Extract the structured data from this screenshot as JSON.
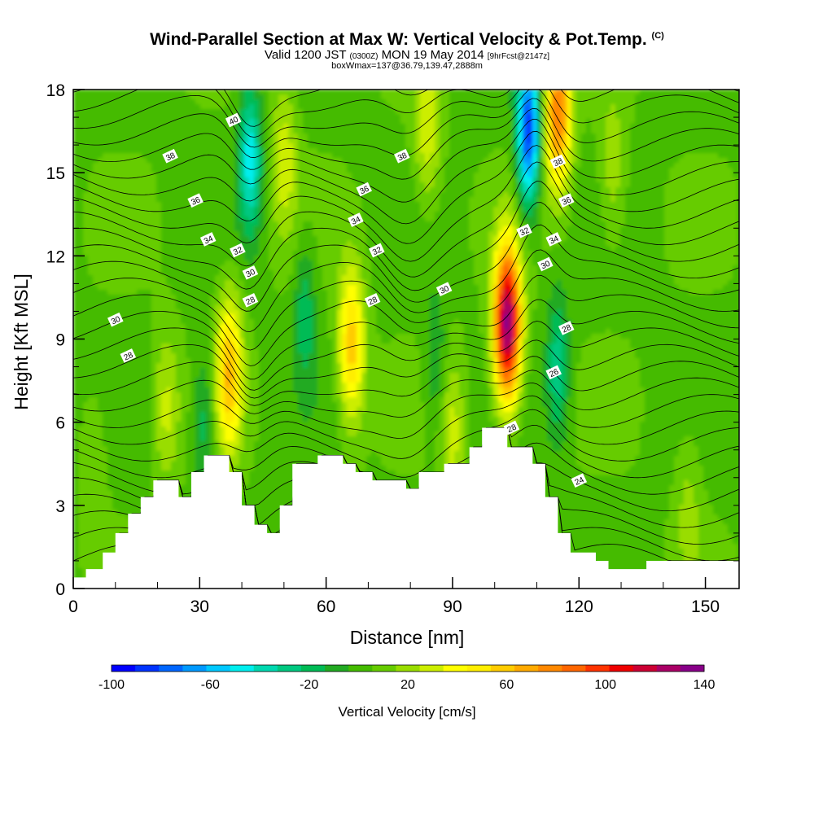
{
  "header": {
    "title": "Wind-Parallel Section at Max W: Vertical Velocity & Pot.Temp.",
    "title_mark": "(C)",
    "valid_prefix": "Valid 1200 JST",
    "valid_utc": "(0300Z)",
    "valid_date": "MON 19 May 2014",
    "forecast": "[9hrFcst@2147z]",
    "box_info": "boxWmax=137@36.79,139.47,2888m"
  },
  "chart_data": {
    "type": "heatmap",
    "xlabel": "Distance [nm]",
    "ylabel": "Height [Kft MSL]",
    "xlim": [
      0,
      158
    ],
    "ylim": [
      0,
      18
    ],
    "x_ticks": [
      "0",
      "30",
      "60",
      "90",
      "120",
      "150"
    ],
    "x_tick_values": [
      0,
      30,
      60,
      90,
      120,
      150
    ],
    "y_ticks": [
      "0",
      "3",
      "6",
      "9",
      "12",
      "15",
      "18"
    ],
    "y_tick_values": [
      0,
      3,
      6,
      9,
      12,
      15,
      18
    ],
    "colorbar": {
      "title": "Vertical Velocity [cm/s]",
      "labels": [
        "-100",
        "-60",
        "-20",
        "20",
        "60",
        "100",
        "140"
      ],
      "min": -100,
      "max": 140,
      "step": 10,
      "colors": [
        "#0000ff",
        "#0033ff",
        "#0066ff",
        "#0099ff",
        "#00c8ff",
        "#00eeee",
        "#00d8b0",
        "#00c880",
        "#00bb55",
        "#22aa22",
        "#44bb00",
        "#66cc00",
        "#99dd00",
        "#ccee00",
        "#ffff00",
        "#ffee00",
        "#ffcc00",
        "#ffaa00",
        "#ff8800",
        "#ff6600",
        "#ff3300",
        "#ee0000",
        "#cc0033",
        "#aa0066",
        "#880088"
      ]
    },
    "terrain": [
      [
        0,
        0.4
      ],
      [
        3,
        0.7
      ],
      [
        7,
        1.3
      ],
      [
        10,
        2.0
      ],
      [
        13,
        2.7
      ],
      [
        16,
        3.3
      ],
      [
        19,
        3.9
      ],
      [
        25,
        3.3
      ],
      [
        28,
        4.2
      ],
      [
        31,
        4.8
      ],
      [
        37,
        4.2
      ],
      [
        40,
        3.0
      ],
      [
        43,
        2.3
      ],
      [
        46,
        2.0
      ],
      [
        49,
        3.0
      ],
      [
        52,
        4.5
      ],
      [
        58,
        4.8
      ],
      [
        64,
        4.5
      ],
      [
        67,
        4.2
      ],
      [
        71,
        3.9
      ],
      [
        79,
        3.6
      ],
      [
        82,
        4.2
      ],
      [
        88,
        4.5
      ],
      [
        94,
        5.1
      ],
      [
        97,
        5.8
      ],
      [
        103,
        5.1
      ],
      [
        109,
        4.5
      ],
      [
        112,
        3.3
      ],
      [
        115,
        2.0
      ],
      [
        118,
        1.3
      ],
      [
        124,
        1.0
      ],
      [
        127,
        0.7
      ],
      [
        136,
        1.0
      ],
      [
        158,
        1.0
      ]
    ],
    "updrafts": [
      {
        "x": 37,
        "z": 7.8,
        "peak": 60
      },
      {
        "x": 66,
        "z": 8.8,
        "peak": 58
      },
      {
        "x": 103,
        "z": 9.5,
        "peak": 137
      },
      {
        "x": 115,
        "z": 17.2,
        "peak": 82
      },
      {
        "x": 22,
        "z": 6.5,
        "peak": 25
      },
      {
        "x": 50,
        "z": 15.5,
        "peak": 28
      },
      {
        "x": 84,
        "z": 16.5,
        "peak": 30
      },
      {
        "x": 5,
        "z": 4.5,
        "peak": 12
      },
      {
        "x": 90,
        "z": 5.5,
        "peak": 25
      },
      {
        "x": 128,
        "z": 15.0,
        "peak": 20
      },
      {
        "x": 146,
        "z": 3.0,
        "peak": 15
      }
    ],
    "downdrafts": [
      {
        "x": 108,
        "z": 16.5,
        "peak": -95
      },
      {
        "x": 42,
        "z": 15.5,
        "peak": -55
      },
      {
        "x": 115,
        "z": 8.0,
        "peak": -35
      },
      {
        "x": 31,
        "z": 6.0,
        "peak": -25
      },
      {
        "x": 55,
        "z": 10.0,
        "peak": -25
      },
      {
        "x": 86,
        "z": 8.0,
        "peak": -20
      }
    ],
    "isentrope_labels": [
      {
        "text": "40",
        "x": 38,
        "z": 16.9
      },
      {
        "text": "38",
        "x": 23,
        "z": 15.6
      },
      {
        "text": "36",
        "x": 29,
        "z": 14.0
      },
      {
        "text": "34",
        "x": 32,
        "z": 12.6
      },
      {
        "text": "32",
        "x": 39,
        "z": 12.2
      },
      {
        "text": "30",
        "x": 42,
        "z": 11.4
      },
      {
        "text": "28",
        "x": 42,
        "z": 10.4
      },
      {
        "text": "30",
        "x": 10,
        "z": 9.7
      },
      {
        "text": "28",
        "x": 13,
        "z": 8.4
      },
      {
        "text": "38",
        "x": 78,
        "z": 15.6
      },
      {
        "text": "36",
        "x": 69,
        "z": 14.4
      },
      {
        "text": "34",
        "x": 67,
        "z": 13.3
      },
      {
        "text": "32",
        "x": 72,
        "z": 12.2
      },
      {
        "text": "30",
        "x": 88,
        "z": 10.8
      },
      {
        "text": "28",
        "x": 71,
        "z": 10.4
      },
      {
        "text": "38",
        "x": 115,
        "z": 15.4
      },
      {
        "text": "36",
        "x": 117,
        "z": 14.0
      },
      {
        "text": "34",
        "x": 114,
        "z": 12.6
      },
      {
        "text": "32",
        "x": 107,
        "z": 12.9
      },
      {
        "text": "30",
        "x": 112,
        "z": 11.7
      },
      {
        "text": "28",
        "x": 117,
        "z": 9.4
      },
      {
        "text": "26",
        "x": 114,
        "z": 7.8
      },
      {
        "text": "28",
        "x": 104,
        "z": 5.8
      },
      {
        "text": "24",
        "x": 120,
        "z": 3.9
      }
    ]
  }
}
